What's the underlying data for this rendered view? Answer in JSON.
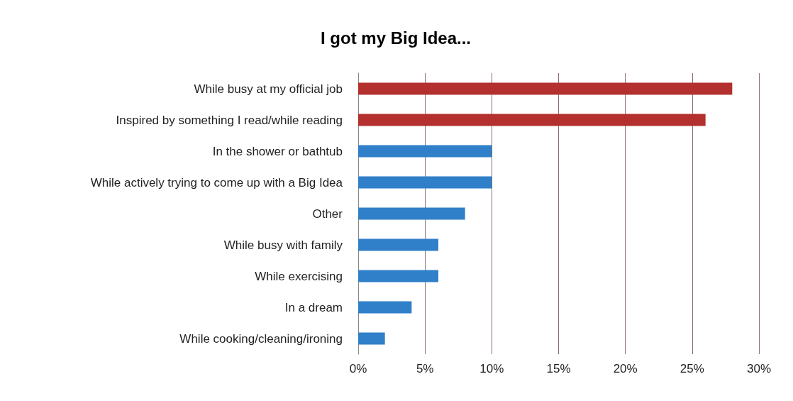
{
  "chart_data": {
    "type": "bar",
    "orientation": "horizontal",
    "title": "I got my Big Idea...",
    "categories": [
      "While busy at my official job",
      "Inspired by something I read/while reading",
      "In the shower or bathtub",
      "While actively trying to come up with a Big Idea",
      "Other",
      "While busy with family",
      "While exercising",
      "In a dream",
      "While cooking/cleaning/ironing"
    ],
    "values": [
      28,
      26,
      10,
      10,
      8,
      6,
      6,
      4,
      2
    ],
    "colors": [
      "#b3302f",
      "#b3302f",
      "#2f7fc9",
      "#2f7fc9",
      "#2f7fc9",
      "#2f7fc9",
      "#2f7fc9",
      "#2f7fc9",
      "#2f7fc9"
    ],
    "xlim": [
      0,
      30
    ],
    "xticks": [
      {
        "value": 0,
        "label": "0%"
      },
      {
        "value": 5,
        "label": "5%"
      },
      {
        "value": 10,
        "label": "10%"
      },
      {
        "value": 15,
        "label": "15%"
      },
      {
        "value": 20,
        "label": "20%"
      },
      {
        "value": 25,
        "label": "25%"
      },
      {
        "value": 30,
        "label": "30%"
      }
    ],
    "grid": "x"
  }
}
